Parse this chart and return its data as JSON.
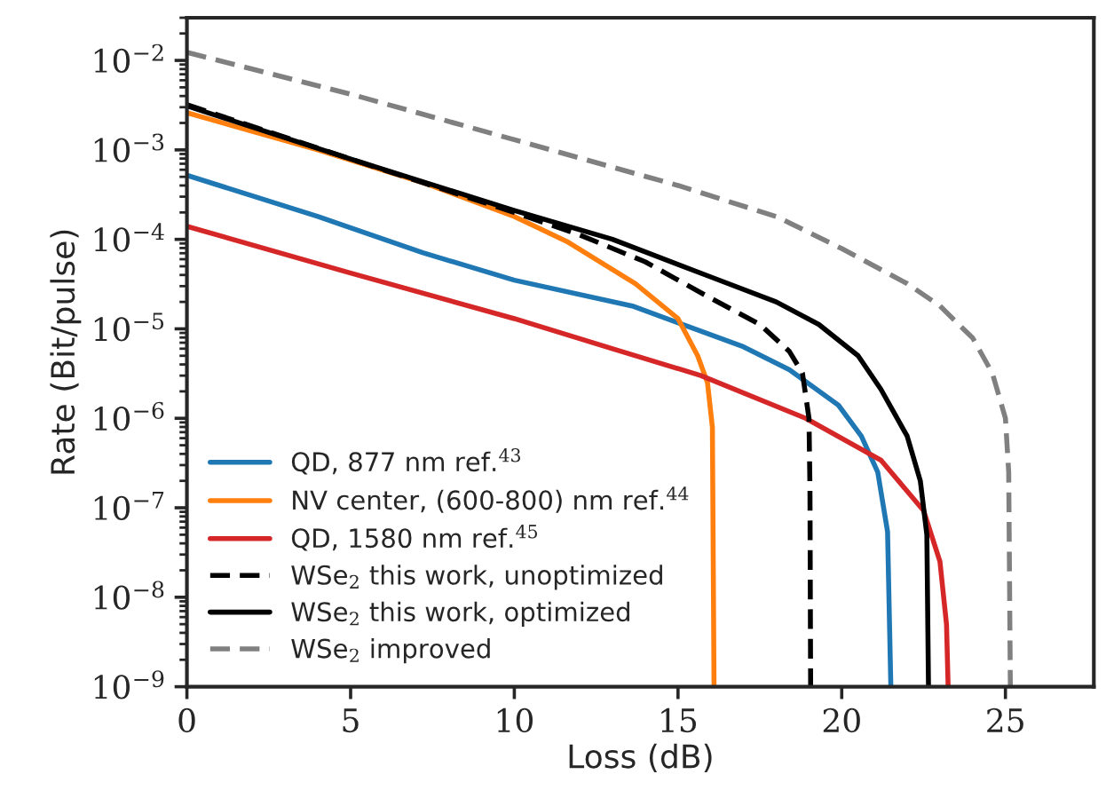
{
  "chart_data": {
    "type": "line",
    "xlabel": "Loss (dB)",
    "ylabel": "Rate (Bit/pulse)",
    "log": "y",
    "xlim": [
      0,
      27.7
    ],
    "xticks": [
      0,
      5,
      10,
      15,
      20,
      25
    ],
    "ylim": [
      1e-09,
      0.03
    ],
    "yticks": [
      {
        "value": 1e-09,
        "label": "10$^{−9}$"
      },
      {
        "value": 1e-08,
        "label": "10$^{−8}$"
      },
      {
        "value": 1e-07,
        "label": "10$^{−7}$"
      },
      {
        "value": 1e-06,
        "label": "10$^{−6}$"
      },
      {
        "value": 1e-05,
        "label": "10$^{−5}$"
      },
      {
        "value": 0.0001,
        "label": "10$^{−4}$"
      },
      {
        "value": 0.001,
        "label": "10$^{−3}$"
      },
      {
        "value": 0.01,
        "label": "10$^{−2}$"
      }
    ],
    "grid": false,
    "legend": "bottom left",
    "marker": "none",
    "series": [
      {
        "name": "QD, 877 nm ref.$^{43}$",
        "color": "#1f77b4",
        "line_style": "solid",
        "x": [
          0,
          4,
          7.2,
          10,
          13.6,
          15,
          17,
          18.4,
          19.9,
          20.6,
          21.1,
          21.4,
          21.5
        ],
        "values": [
          0.00052,
          0.00018,
          7.1e-05,
          3.5e-05,
          1.8e-05,
          1.17e-05,
          6.3e-06,
          3.5e-06,
          1.4e-06,
          6.3e-07,
          2.5e-07,
          5.4e-08,
          1e-09
        ]
      },
      {
        "name": "NV center, (600-800) nm ref.$^{44}$",
        "color": "#ff7f0e",
        "line_style": "solid",
        "x": [
          0,
          4,
          7.3,
          10,
          11.6,
          13.7,
          15.0,
          15.6,
          15.9,
          16.05,
          16.1
        ],
        "values": [
          0.0026,
          0.001,
          0.00042,
          0.00018,
          9.5e-05,
          3.2e-05,
          1.3e-05,
          5e-06,
          2.5e-06,
          7.9e-07,
          1e-09
        ]
      },
      {
        "name": "QD, 1580 nm ref.$^{45}$",
        "color": "#d62728",
        "line_style": "solid",
        "x": [
          0,
          5,
          10,
          13,
          15.7,
          18.9,
          21.2,
          22.5,
          23.0,
          23.2,
          23.25
        ],
        "values": [
          0.00014,
          4.2e-05,
          1.3e-05,
          6e-06,
          3e-06,
          1e-06,
          3.4e-07,
          9.3e-08,
          2.5e-08,
          5e-09,
          1e-09
        ]
      },
      {
        "name": "WSe$_{2}$ this work, unoptimized",
        "color": "#000000",
        "line_style": "dashed",
        "x": [
          0,
          5,
          10,
          12,
          14,
          16,
          17.5,
          18.4,
          18.8,
          19.0,
          19.03,
          19.05
        ],
        "values": [
          0.0032,
          0.00079,
          0.0002,
          0.000112,
          5.6e-05,
          2.2e-05,
          1.12e-05,
          5.6e-06,
          3.2e-06,
          1e-06,
          1.6e-07,
          1e-09
        ]
      },
      {
        "name": "WSe$_{2}$ this work, optimized",
        "color": "#000000",
        "line_style": "solid",
        "x": [
          0,
          5,
          10,
          13,
          16,
          18,
          19.3,
          20.5,
          21.2,
          22,
          22.4,
          22.6,
          22.65
        ],
        "values": [
          0.0031,
          0.00079,
          0.00021,
          0.0001,
          3.8e-05,
          2e-05,
          1.12e-05,
          5e-06,
          2.1e-06,
          6.3e-07,
          2e-07,
          5e-08,
          1e-09
        ]
      },
      {
        "name": "WSe$_{2}$ improved",
        "color": "#808080",
        "line_style": "dashed",
        "x": [
          0,
          5,
          10,
          15,
          18,
          20,
          22,
          23,
          24,
          24.6,
          25.0,
          25.1,
          25.15
        ],
        "values": [
          0.0123,
          0.0042,
          0.0013,
          0.0004,
          0.00018,
          7.9e-05,
          3.2e-05,
          1.8e-05,
          7.9e-06,
          3.2e-06,
          1e-06,
          2.5e-07,
          1e-09
        ]
      }
    ]
  }
}
